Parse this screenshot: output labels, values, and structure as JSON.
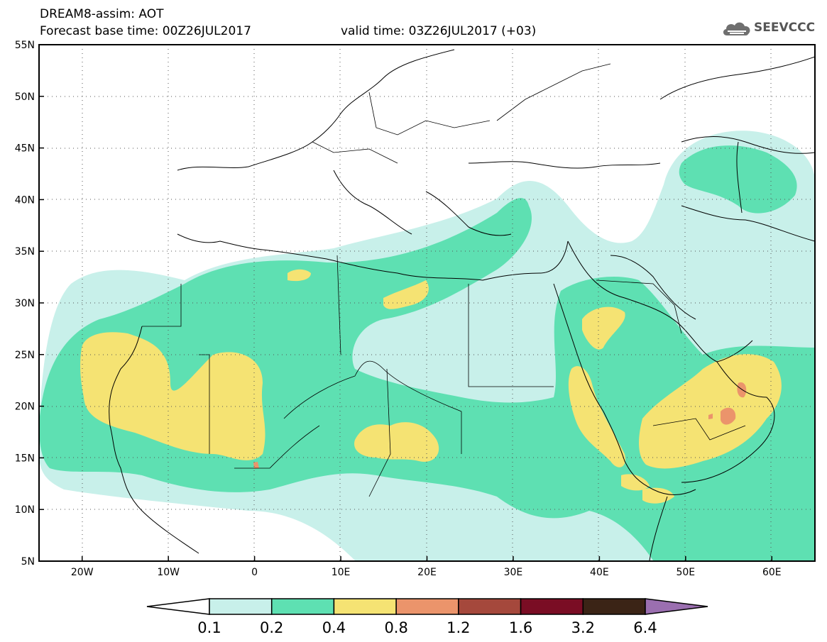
{
  "header": {
    "title": "DREAM8-assim: AOT",
    "base_time": "Forecast base time: 00Z26JUL2017",
    "valid_time": "valid time: 03Z26JUL2017 (+03)",
    "logo_text": "SEEVCCC"
  },
  "map": {
    "region": {
      "lon_min": -25,
      "lon_max": 65,
      "lat_min": 5,
      "lat_max": 55
    },
    "lat_labels": [
      "55N",
      "50N",
      "45N",
      "40N",
      "35N",
      "30N",
      "25N",
      "20N",
      "15N",
      "10N",
      "5N"
    ],
    "lon_labels": [
      "20W",
      "10W",
      "0",
      "10E",
      "20E",
      "30E",
      "40E",
      "50E",
      "60E"
    ],
    "gridlines": "dotted"
  },
  "colorbar": {
    "levels": [
      "0.1",
      "0.2",
      "0.4",
      "0.8",
      "1.2",
      "1.6",
      "3.2",
      "6.4"
    ],
    "colors": [
      "#ffffff",
      "#c8f0ea",
      "#5ee0b2",
      "#f5e373",
      "#eb946b",
      "#a5483c",
      "#7a0d24",
      "#3b2416",
      "#9b6fb0"
    ]
  }
}
